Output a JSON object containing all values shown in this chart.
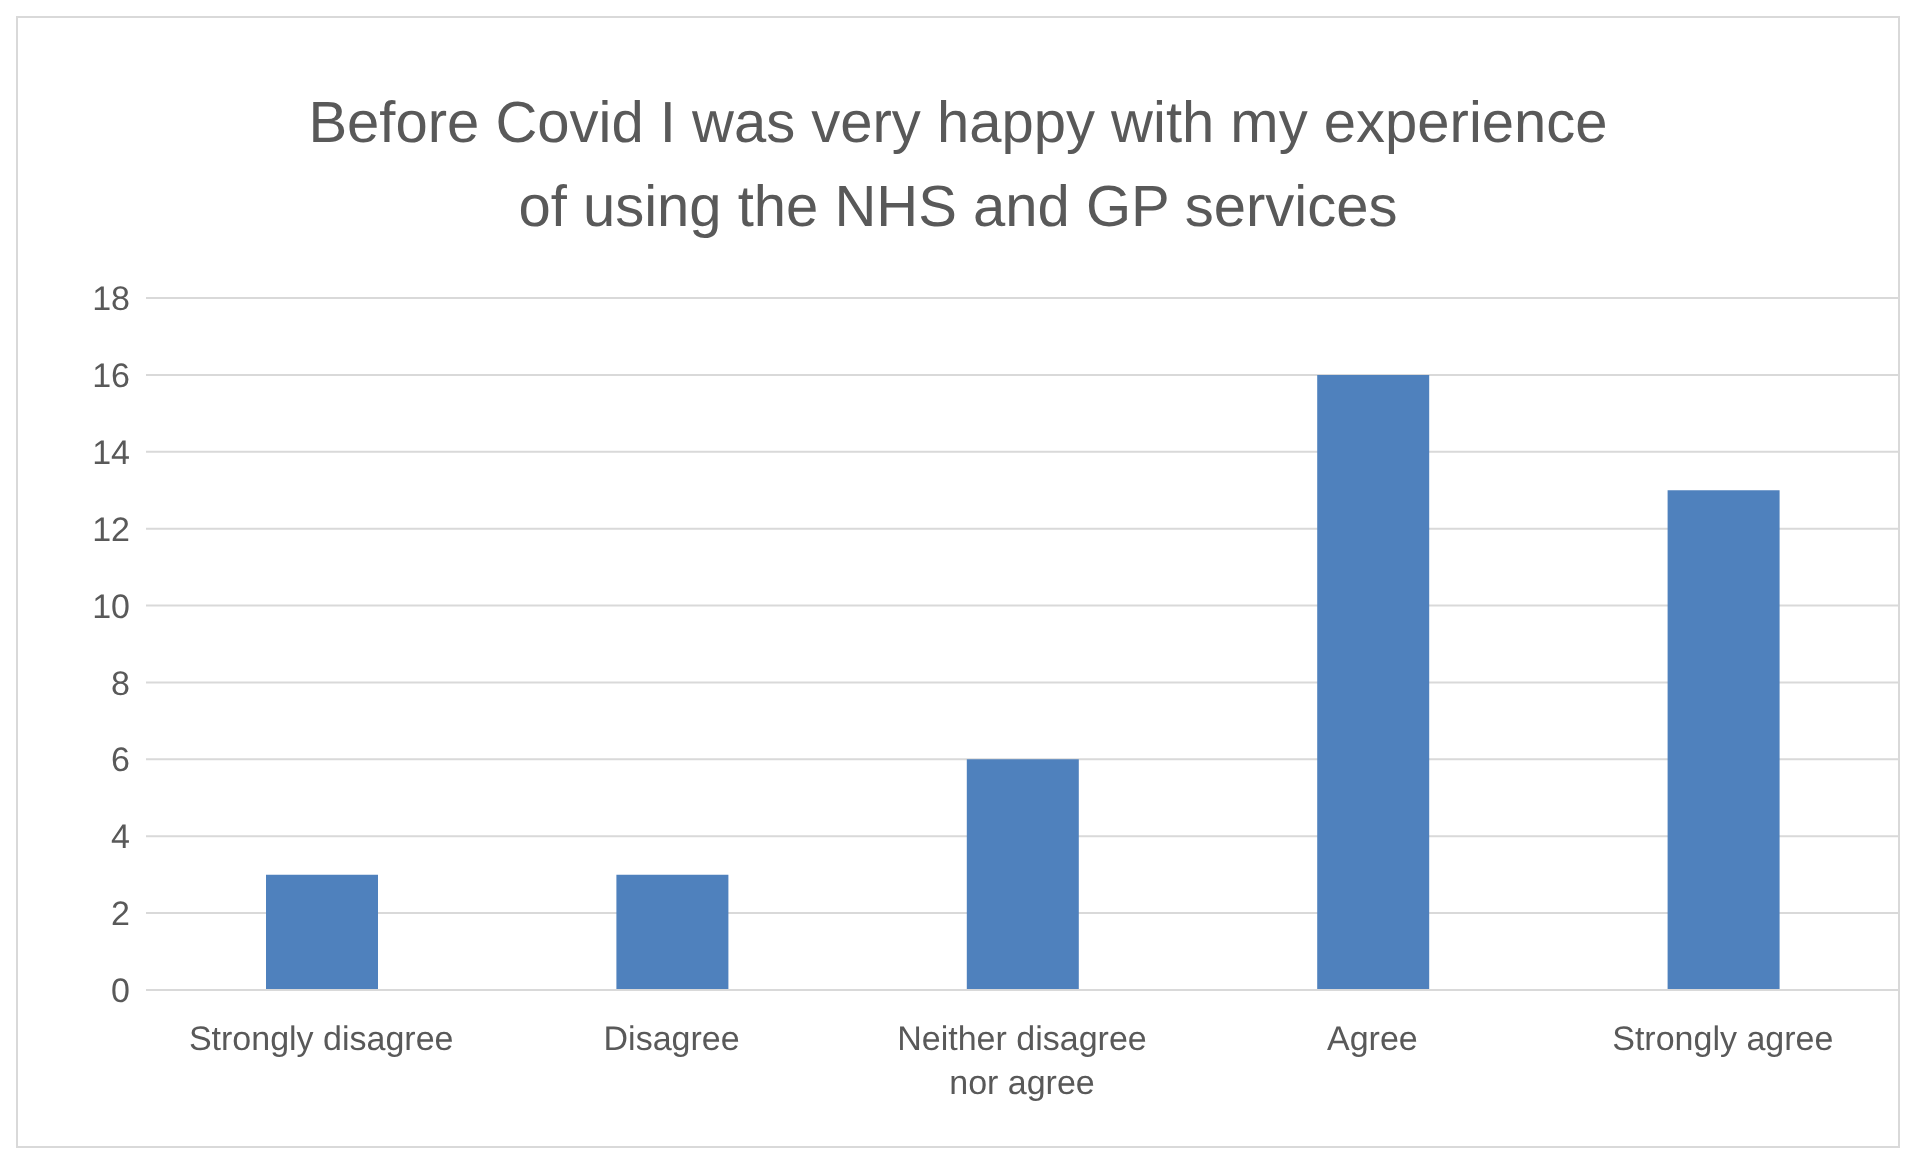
{
  "chart_data": {
    "type": "bar",
    "title": "Before Covid I was very happy with my experience of using the NHS and GP services",
    "categories": [
      "Strongly disagree",
      "Disagree",
      "Neither disagree nor agree",
      "Agree",
      "Strongly agree"
    ],
    "values": [
      3,
      3,
      6,
      16,
      13
    ],
    "color": "#4f81bd",
    "ylim": [
      0,
      18
    ],
    "yticks": [
      0,
      2,
      4,
      6,
      8,
      10,
      12,
      14,
      16,
      18
    ],
    "grid": "y",
    "legend": false
  }
}
